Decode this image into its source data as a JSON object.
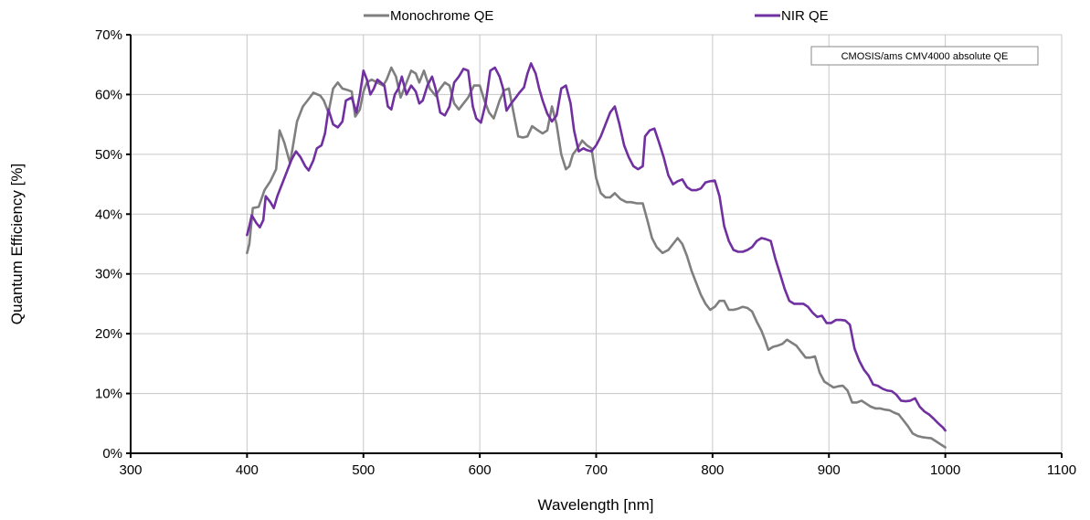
{
  "chart_data": {
    "type": "line",
    "title": "",
    "xlabel": "Wavelength [nm]",
    "ylabel": "Quantum Efficiency [%]",
    "xlim": [
      300,
      1100
    ],
    "ylim": [
      0,
      70
    ],
    "x_ticks": [
      300,
      400,
      500,
      600,
      700,
      800,
      900,
      1000,
      1100
    ],
    "y_ticks": [
      0,
      10,
      20,
      30,
      40,
      50,
      60,
      70
    ],
    "x_tick_labels": [
      "300",
      "400",
      "500",
      "600",
      "700",
      "800",
      "900",
      "1000",
      "1100"
    ],
    "y_tick_labels": [
      "0%",
      "10%",
      "20%",
      "30%",
      "40%",
      "50%",
      "60%",
      "70%"
    ],
    "grid": true,
    "legend_position": "top",
    "annotation": "CMOSIS/ams CMV4000 absolute QE",
    "series": [
      {
        "name": "Monochrome QE",
        "color": "#7f7f7f",
        "points": [
          [
            400,
            33.5
          ],
          [
            402,
            35
          ],
          [
            405,
            41
          ],
          [
            410,
            41.2
          ],
          [
            415,
            44
          ],
          [
            420,
            45.5
          ],
          [
            425,
            47.5
          ],
          [
            428,
            54
          ],
          [
            432,
            52
          ],
          [
            437,
            48.5
          ],
          [
            443,
            55.5
          ],
          [
            448,
            58
          ],
          [
            452,
            59
          ],
          [
            457,
            60.3
          ],
          [
            463,
            59.8
          ],
          [
            466,
            59
          ],
          [
            470,
            57
          ],
          [
            474,
            61
          ],
          [
            478,
            62
          ],
          [
            482,
            61
          ],
          [
            487,
            60.7
          ],
          [
            490,
            60.5
          ],
          [
            493,
            56.3
          ],
          [
            497,
            57.5
          ],
          [
            500,
            60.5
          ],
          [
            503,
            62
          ],
          [
            507,
            62.5
          ],
          [
            512,
            62
          ],
          [
            517,
            61.5
          ],
          [
            520,
            62.5
          ],
          [
            524,
            64.5
          ],
          [
            528,
            63
          ],
          [
            532,
            59.5
          ],
          [
            537,
            62
          ],
          [
            541,
            64
          ],
          [
            545,
            63.5
          ],
          [
            548,
            62
          ],
          [
            552,
            64
          ],
          [
            557,
            61
          ],
          [
            562,
            59.8
          ],
          [
            566,
            61
          ],
          [
            570,
            62
          ],
          [
            574,
            61.5
          ],
          [
            578,
            58.5
          ],
          [
            582,
            57.5
          ],
          [
            586,
            58.5
          ],
          [
            590,
            59.5
          ],
          [
            595,
            61.5
          ],
          [
            600,
            61.5
          ],
          [
            604,
            59
          ],
          [
            608,
            57
          ],
          [
            612,
            56
          ],
          [
            617,
            59
          ],
          [
            621,
            60.7
          ],
          [
            625,
            61
          ],
          [
            630,
            56
          ],
          [
            633,
            53
          ],
          [
            637,
            52.8
          ],
          [
            641,
            53
          ],
          [
            645,
            54.7
          ],
          [
            650,
            54
          ],
          [
            654,
            53.5
          ],
          [
            658,
            54
          ],
          [
            662,
            58
          ],
          [
            666,
            55
          ],
          [
            670,
            50
          ],
          [
            674,
            47.5
          ],
          [
            677,
            48
          ],
          [
            680,
            50
          ],
          [
            684,
            51
          ],
          [
            688,
            52.3
          ],
          [
            692,
            51.5
          ],
          [
            696,
            51
          ],
          [
            700,
            46
          ],
          [
            704,
            43.5
          ],
          [
            708,
            42.8
          ],
          [
            712,
            42.8
          ],
          [
            716,
            43.5
          ],
          [
            721,
            42.5
          ],
          [
            726,
            42
          ],
          [
            730,
            42
          ],
          [
            735,
            41.8
          ],
          [
            740,
            41.8
          ],
          [
            744,
            39
          ],
          [
            748,
            36
          ],
          [
            752,
            34.5
          ],
          [
            757,
            33.5
          ],
          [
            762,
            34
          ],
          [
            766,
            35
          ],
          [
            770,
            36
          ],
          [
            774,
            35
          ],
          [
            778,
            33
          ],
          [
            782,
            30.5
          ],
          [
            786,
            28.5
          ],
          [
            790,
            26.5
          ],
          [
            794,
            25
          ],
          [
            798,
            24
          ],
          [
            802,
            24.5
          ],
          [
            806,
            25.5
          ],
          [
            810,
            25.5
          ],
          [
            814,
            24
          ],
          [
            818,
            24
          ],
          [
            822,
            24.2
          ],
          [
            826,
            24.5
          ],
          [
            830,
            24.3
          ],
          [
            834,
            23.7
          ],
          [
            838,
            22
          ],
          [
            842,
            20.5
          ],
          [
            845,
            19
          ],
          [
            848,
            17.3
          ],
          [
            852,
            17.8
          ],
          [
            856,
            18
          ],
          [
            860,
            18.3
          ],
          [
            864,
            19
          ],
          [
            868,
            18.5
          ],
          [
            872,
            18
          ],
          [
            876,
            17
          ],
          [
            880,
            16
          ],
          [
            884,
            16
          ],
          [
            888,
            16.2
          ],
          [
            892,
            13.5
          ],
          [
            896,
            12
          ],
          [
            900,
            11.5
          ],
          [
            904,
            11
          ],
          [
            908,
            11.2
          ],
          [
            912,
            11.3
          ],
          [
            916,
            10.5
          ],
          [
            920,
            8.5
          ],
          [
            924,
            8.5
          ],
          [
            928,
            8.8
          ],
          [
            932,
            8.3
          ],
          [
            936,
            7.8
          ],
          [
            940,
            7.5
          ],
          [
            944,
            7.5
          ],
          [
            948,
            7.3
          ],
          [
            952,
            7.2
          ],
          [
            956,
            6.8
          ],
          [
            960,
            6.5
          ],
          [
            964,
            5.5
          ],
          [
            968,
            4.5
          ],
          [
            972,
            3.3
          ],
          [
            976,
            2.9
          ],
          [
            980,
            2.7
          ],
          [
            984,
            2.6
          ],
          [
            988,
            2.5
          ],
          [
            992,
            2
          ],
          [
            996,
            1.5
          ],
          [
            1000,
            1
          ]
        ]
      },
      {
        "name": "NIR QE",
        "color": "#7030a0",
        "points": [
          [
            400,
            36.5
          ],
          [
            402,
            38
          ],
          [
            404,
            39.8
          ],
          [
            408,
            38.5
          ],
          [
            411,
            37.8
          ],
          [
            414,
            39
          ],
          [
            416,
            43
          ],
          [
            420,
            42
          ],
          [
            423,
            41
          ],
          [
            426,
            43
          ],
          [
            430,
            45
          ],
          [
            434,
            47
          ],
          [
            438,
            49
          ],
          [
            442,
            50.5
          ],
          [
            446,
            49.5
          ],
          [
            450,
            48
          ],
          [
            453,
            47.3
          ],
          [
            457,
            49
          ],
          [
            460,
            51
          ],
          [
            464,
            51.5
          ],
          [
            467,
            53.5
          ],
          [
            470,
            57.5
          ],
          [
            474,
            55
          ],
          [
            478,
            54.5
          ],
          [
            482,
            55.5
          ],
          [
            485,
            59
          ],
          [
            490,
            59.5
          ],
          [
            494,
            57
          ],
          [
            497,
            60
          ],
          [
            500,
            64
          ],
          [
            503,
            62.5
          ],
          [
            506,
            60
          ],
          [
            509,
            61
          ],
          [
            512,
            62.5
          ],
          [
            515,
            62
          ],
          [
            518,
            61.5
          ],
          [
            521,
            58
          ],
          [
            524,
            57.5
          ],
          [
            527,
            60
          ],
          [
            530,
            61
          ],
          [
            533,
            63
          ],
          [
            537,
            60
          ],
          [
            541,
            61.5
          ],
          [
            545,
            60.5
          ],
          [
            548,
            58.5
          ],
          [
            551,
            59
          ],
          [
            555,
            61.5
          ],
          [
            559,
            63
          ],
          [
            562,
            61
          ],
          [
            566,
            57
          ],
          [
            570,
            56.5
          ],
          [
            574,
            58
          ],
          [
            578,
            62
          ],
          [
            582,
            63
          ],
          [
            586,
            64.3
          ],
          [
            590,
            64
          ],
          [
            594,
            58
          ],
          [
            597,
            56
          ],
          [
            601,
            55.3
          ],
          [
            605,
            58.5
          ],
          [
            609,
            64
          ],
          [
            613,
            64.5
          ],
          [
            617,
            63
          ],
          [
            620,
            61
          ],
          [
            623,
            57.3
          ],
          [
            627,
            58.5
          ],
          [
            631,
            59.5
          ],
          [
            634,
            60.3
          ],
          [
            638,
            61.2
          ],
          [
            641,
            63.5
          ],
          [
            644,
            65.2
          ],
          [
            648,
            63.5
          ],
          [
            651,
            61
          ],
          [
            654,
            59
          ],
          [
            658,
            56.8
          ],
          [
            662,
            55.5
          ],
          [
            666,
            56.5
          ],
          [
            670,
            61
          ],
          [
            674,
            61.5
          ],
          [
            678,
            58.5
          ],
          [
            681,
            54
          ],
          [
            685,
            50.5
          ],
          [
            689,
            51
          ],
          [
            692,
            50.7
          ],
          [
            696,
            50.5
          ],
          [
            700,
            51.5
          ],
          [
            704,
            53
          ],
          [
            708,
            55
          ],
          [
            712,
            57
          ],
          [
            716,
            58
          ],
          [
            720,
            55
          ],
          [
            724,
            51.5
          ],
          [
            728,
            49.5
          ],
          [
            732,
            48
          ],
          [
            736,
            47.5
          ],
          [
            740,
            48
          ],
          [
            742,
            53
          ],
          [
            746,
            54
          ],
          [
            750,
            54.3
          ],
          [
            754,
            52
          ],
          [
            758,
            49.5
          ],
          [
            762,
            46.5
          ],
          [
            766,
            45
          ],
          [
            770,
            45.5
          ],
          [
            774,
            45.8
          ],
          [
            778,
            44.5
          ],
          [
            782,
            44
          ],
          [
            786,
            44
          ],
          [
            790,
            44.3
          ],
          [
            794,
            45.3
          ],
          [
            798,
            45.5
          ],
          [
            802,
            45.6
          ],
          [
            806,
            43
          ],
          [
            810,
            38
          ],
          [
            814,
            35.5
          ],
          [
            818,
            34
          ],
          [
            822,
            33.7
          ],
          [
            826,
            33.7
          ],
          [
            830,
            34
          ],
          [
            834,
            34.5
          ],
          [
            838,
            35.5
          ],
          [
            842,
            36
          ],
          [
            846,
            35.8
          ],
          [
            850,
            35.5
          ],
          [
            854,
            32.5
          ],
          [
            858,
            30
          ],
          [
            862,
            27.5
          ],
          [
            866,
            25.5
          ],
          [
            870,
            25
          ],
          [
            874,
            25
          ],
          [
            878,
            25
          ],
          [
            882,
            24.5
          ],
          [
            886,
            23.5
          ],
          [
            890,
            22.8
          ],
          [
            894,
            23
          ],
          [
            898,
            21.8
          ],
          [
            902,
            21.8
          ],
          [
            906,
            22.3
          ],
          [
            910,
            22.3
          ],
          [
            914,
            22.2
          ],
          [
            918,
            21.5
          ],
          [
            922,
            17.5
          ],
          [
            926,
            15.5
          ],
          [
            930,
            14
          ],
          [
            934,
            13
          ],
          [
            938,
            11.5
          ],
          [
            942,
            11.3
          ],
          [
            946,
            10.8
          ],
          [
            950,
            10.5
          ],
          [
            954,
            10.4
          ],
          [
            958,
            9.8
          ],
          [
            962,
            8.8
          ],
          [
            966,
            8.7
          ],
          [
            970,
            8.8
          ],
          [
            974,
            9.2
          ],
          [
            978,
            7.8
          ],
          [
            982,
            7
          ],
          [
            986,
            6.5
          ],
          [
            990,
            5.8
          ],
          [
            994,
            5
          ],
          [
            998,
            4.3
          ],
          [
            1000,
            3.8
          ]
        ]
      }
    ]
  }
}
